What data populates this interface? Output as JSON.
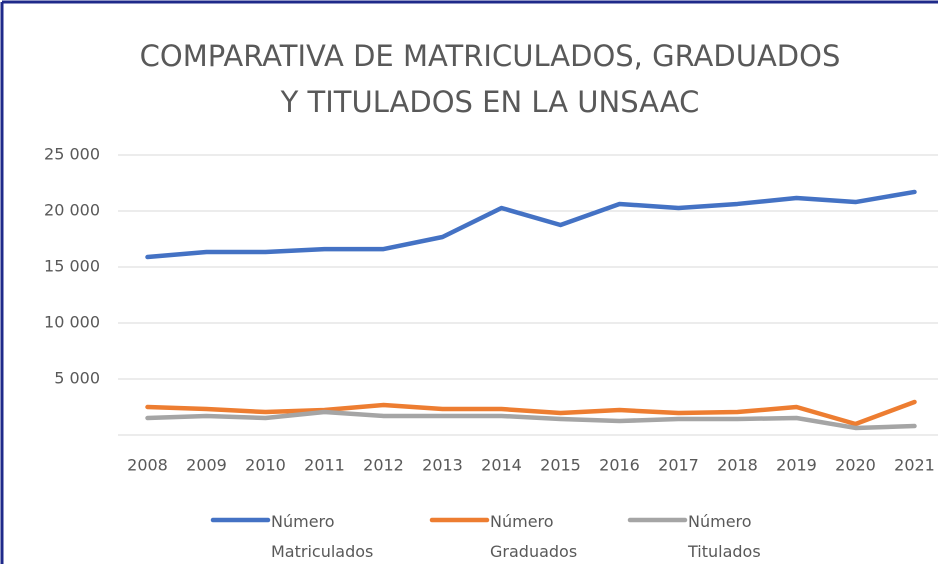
{
  "chart_data": {
    "type": "line",
    "title": [
      "COMPARATIVA DE MATRICULADOS, GRADUADOS",
      "Y TITULADOS EN LA UNSAAC"
    ],
    "categories": [
      "2008",
      "2009",
      "2010",
      "2011",
      "2012",
      "2013",
      "2014",
      "2015",
      "2016",
      "2017",
      "2018",
      "2019",
      "2020",
      "2021"
    ],
    "series": [
      {
        "name": "Número Matriculados",
        "color": "#4472c4",
        "values": [
          15890,
          16340,
          16340,
          16600,
          16600,
          17680,
          20270,
          18750,
          20630,
          20270,
          20630,
          21160,
          20800,
          21700
        ]
      },
      {
        "name": "Número Graduados",
        "color": "#ed7d31",
        "values": [
          2500,
          2320,
          2050,
          2230,
          2680,
          2320,
          2320,
          1960,
          2230,
          1960,
          2050,
          2500,
          980,
          2950
        ]
      },
      {
        "name": "Número Titulados",
        "color": "#a5a5a5",
        "values": [
          1520,
          1700,
          1520,
          2050,
          1700,
          1700,
          1700,
          1430,
          1250,
          1430,
          1430,
          1520,
          630,
          800
        ]
      }
    ],
    "ylim": [
      0,
      25000
    ],
    "yticks": [
      {
        "value": 5000,
        "label": "5 000"
      },
      {
        "value": 10000,
        "label": "10 000"
      },
      {
        "value": 15000,
        "label": "15 000"
      },
      {
        "value": 20000,
        "label": "20 000"
      },
      {
        "value": 25000,
        "label": "25 000"
      }
    ],
    "grid": true
  }
}
